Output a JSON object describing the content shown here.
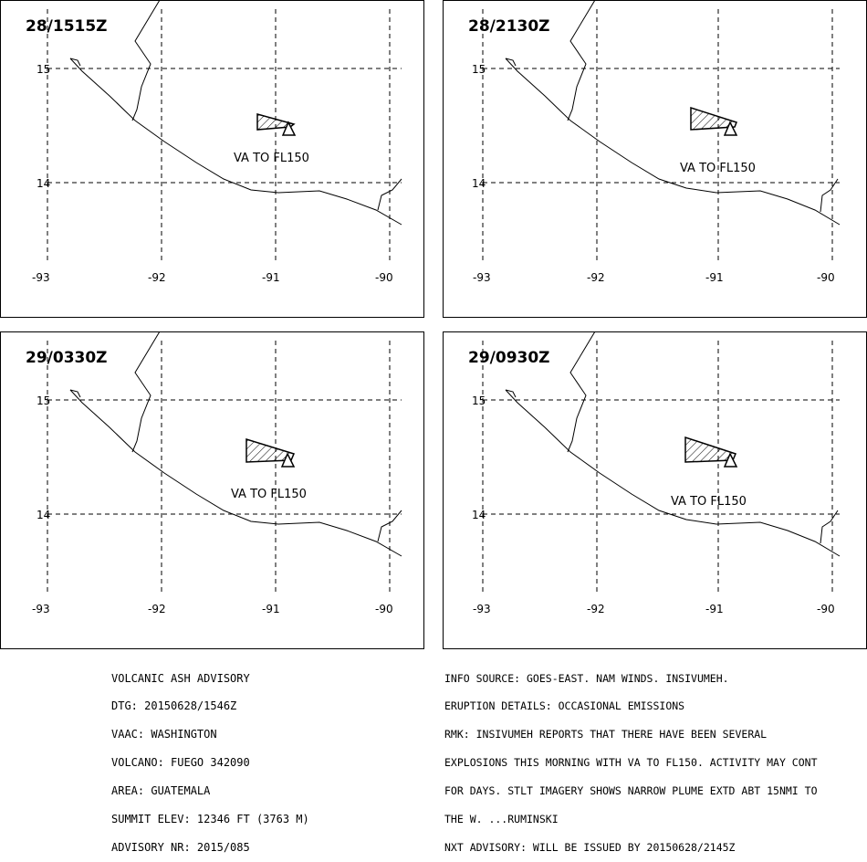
{
  "panels": [
    {
      "time": "28/1515Z",
      "label": "VA TO FL150"
    },
    {
      "time": "28/2130Z",
      "label": "VA TO FL150"
    },
    {
      "time": "29/0330Z",
      "label": "VA TO FL150"
    },
    {
      "time": "29/0930Z",
      "label": "VA TO FL150"
    }
  ],
  "axes": {
    "lon_ticks": [
      "-93",
      "-92",
      "-91",
      "-90"
    ],
    "lat_ticks": [
      "15",
      "14"
    ]
  },
  "advisory_left": [
    "VOLCANIC ASH ADVISORY",
    "DTG: 20150628/1546Z",
    "VAAC: WASHINGTON",
    "VOLCANO: FUEGO 342090",
    "AREA: GUATEMALA",
    "SUMMIT ELEV: 12346 FT (3763 M)",
    "ADVISORY NR: 2015/085"
  ],
  "advisory_right": [
    "INFO SOURCE: GOES-EAST. NAM WINDS. INSIVUMEH.",
    "ERUPTION DETAILS: OCCASIONAL EMISSIONS",
    "RMK: INSIVUMEH REPORTS THAT THERE HAVE BEEN SEVERAL",
    "EXPLOSIONS THIS MORNING WITH VA TO FL150. ACTIVITY MAY CONT",
    "FOR DAYS. STLT IMAGERY SHOWS NARROW PLUME EXTD ABT 15NMI TO",
    "THE W. ...RUMINSKI",
    "NXT ADVISORY: WILL BE ISSUED BY 20150628/2145Z"
  ]
}
